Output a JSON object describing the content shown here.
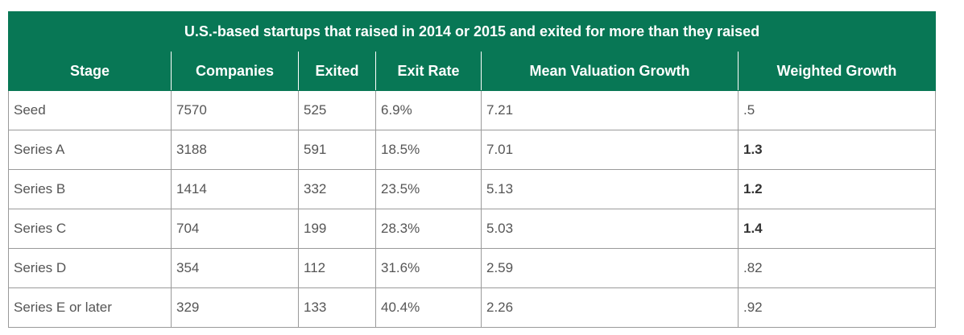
{
  "table": {
    "title": "U.S.-based startups that raised in 2014 or 2015 and exited for more than they raised",
    "headers": [
      "Stage",
      "Companies",
      "Exited",
      "Exit Rate",
      "Mean Valuation Growth",
      "Weighted Growth"
    ],
    "rows": [
      {
        "stage": "Seed",
        "companies": "7570",
        "exited": "525",
        "exit_rate": "6.9%",
        "mean_valuation_growth": "7.21",
        "weighted_growth": ".5",
        "weighted_bold": false
      },
      {
        "stage": "Series A",
        "companies": "3188",
        "exited": "591",
        "exit_rate": "18.5%",
        "mean_valuation_growth": "7.01",
        "weighted_growth": "1.3",
        "weighted_bold": true
      },
      {
        "stage": "Series B",
        "companies": "1414",
        "exited": "332",
        "exit_rate": "23.5%",
        "mean_valuation_growth": "5.13",
        "weighted_growth": "1.2",
        "weighted_bold": true
      },
      {
        "stage": "Series C",
        "companies": "704",
        "exited": "199",
        "exit_rate": "28.3%",
        "mean_valuation_growth": "5.03",
        "weighted_growth": "1.4",
        "weighted_bold": true
      },
      {
        "stage": "Series D",
        "companies": "354",
        "exited": "112",
        "exit_rate": "31.6%",
        "mean_valuation_growth": "2.59",
        "weighted_growth": ".82",
        "weighted_bold": false
      },
      {
        "stage": "Series E or later",
        "companies": "329",
        "exited": "133",
        "exit_rate": "40.4%",
        "mean_valuation_growth": "2.26",
        "weighted_growth": ".92",
        "weighted_bold": false
      }
    ]
  },
  "colors": {
    "header_bg": "#087755",
    "header_text": "#ffffff",
    "cell_border": "#9a9a9a",
    "cell_text": "#555555"
  }
}
